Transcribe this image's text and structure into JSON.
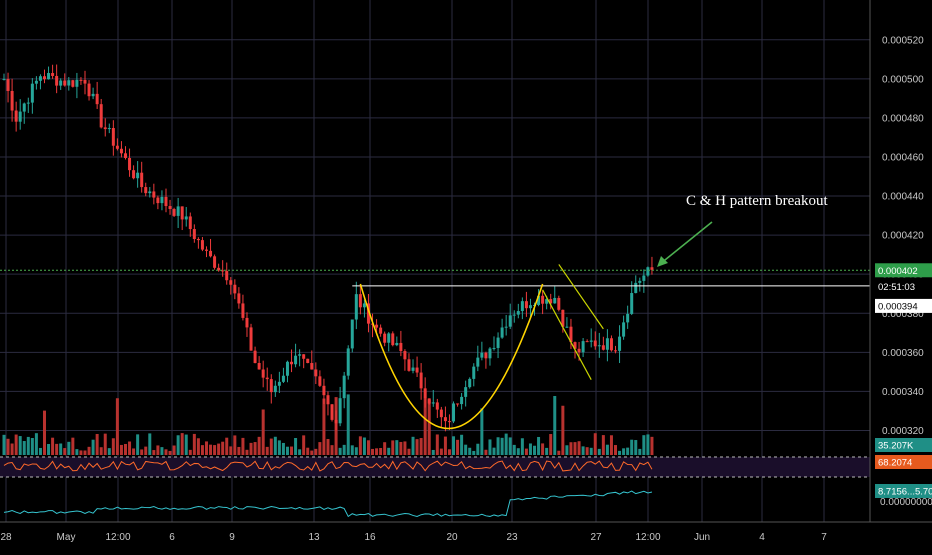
{
  "chart_data": {
    "type": "candlestick",
    "title": "",
    "annotation": "C & H pattern  breakout",
    "colors": {
      "background": "#000000",
      "grid": "#2b2b40",
      "up": "#26a69a",
      "down": "#ef3b3b",
      "volume_up": "#1f8f86",
      "volume_down": "#b8322f",
      "cup_curve": "#ffd400",
      "handle_lines": "#c9d400",
      "arrow": "#4caf50",
      "resistance": "#ffffff",
      "rsi_line": "#ff6a2a",
      "rsi_band": "#1a0e2a",
      "obv_line": "#36c5d0"
    },
    "y_axis": {
      "min": 0.00031,
      "max": 0.000525,
      "ticks": [
        "0.000520",
        "0.000500",
        "0.000480",
        "0.000460",
        "0.000440",
        "0.000420",
        "0.000400",
        "0.000380",
        "0.000360",
        "0.000340",
        "0.000320"
      ]
    },
    "x_axis": {
      "ticks": [
        "28",
        "May",
        "12:00",
        "6",
        "9",
        "13",
        "16",
        "20",
        "23",
        "27",
        "12:00",
        "Jun",
        "4",
        "7"
      ]
    },
    "ohlc_keypoints": [
      {
        "t": 0,
        "p": 0.0005
      },
      {
        "t": 3,
        "p": 0.00048
      },
      {
        "t": 9,
        "p": 0.000502
      },
      {
        "t": 16,
        "p": 0.000498
      },
      {
        "t": 20,
        "p": 0.0005
      },
      {
        "t": 24,
        "p": 0.000478
      },
      {
        "t": 34,
        "p": 0.000445
      },
      {
        "t": 44,
        "p": 0.00043
      },
      {
        "t": 50,
        "p": 0.00041
      },
      {
        "t": 56,
        "p": 0.000398
      },
      {
        "t": 62,
        "p": 0.000355
      },
      {
        "t": 66,
        "p": 0.00034
      },
      {
        "t": 72,
        "p": 0.00036
      },
      {
        "t": 77,
        "p": 0.000345
      },
      {
        "t": 82,
        "p": 0.000325
      },
      {
        "t": 87,
        "p": 0.000388
      },
      {
        "t": 92,
        "p": 0.000372
      },
      {
        "t": 98,
        "p": 0.00036
      },
      {
        "t": 104,
        "p": 0.00034
      },
      {
        "t": 109,
        "p": 0.000322
      },
      {
        "t": 115,
        "p": 0.00035
      },
      {
        "t": 120,
        "p": 0.000362
      },
      {
        "t": 125,
        "p": 0.00038
      },
      {
        "t": 131,
        "p": 0.000388
      },
      {
        "t": 136,
        "p": 0.000388
      },
      {
        "t": 141,
        "p": 0.00036
      },
      {
        "t": 145,
        "p": 0.000365
      },
      {
        "t": 151,
        "p": 0.000364
      },
      {
        "t": 156,
        "p": 0.000396
      },
      {
        "t": 160,
        "p": 0.000402
      }
    ],
    "candle_count": 161,
    "last_price": "0.000402",
    "countdown": "02:51:03",
    "high_line_label": "0.000394",
    "resistance_level": 0.000394,
    "cup_from_t": 88,
    "cup_bottom_t": 109,
    "cup_bottom_price": 0.000321,
    "cup_to_t": 133,
    "cup_rim_price": 0.000395,
    "handle_upper": {
      "from_t": 137,
      "from_p": 0.000405,
      "to_t": 148,
      "to_p": 0.000372
    },
    "handle_lower": {
      "from_t": 133,
      "from_p": 0.000392,
      "to_t": 145,
      "to_p": 0.000346
    },
    "volume_label": "35.207K",
    "rsi_label": "68.2074",
    "obv_label": "8.7156...5.700",
    "obv_label2": "0.000000000"
  }
}
